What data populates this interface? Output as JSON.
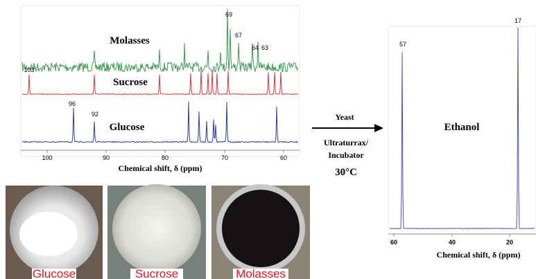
{
  "left_spectrum": {
    "traces": [
      {
        "name": "Molasses",
        "color": "#3f9a52"
      },
      {
        "name": "Sucrose",
        "color": "#d23a3a"
      },
      {
        "name": "Glucose",
        "color": "#2e3d9c"
      }
    ],
    "peak_labels": [
      "69",
      "67",
      "64",
      "63",
      "103",
      "96",
      "92"
    ],
    "xticks": [
      "100",
      "90",
      "80",
      "70",
      "60"
    ],
    "xlabel": "Chemical shift, δ (ppm)"
  },
  "arrow": {
    "above": "Yeast",
    "below": [
      "Ultraturrax/",
      "Incubator",
      "30°C"
    ]
  },
  "right_spectrum": {
    "label": "Ethanol",
    "peak_labels": [
      "57",
      "17"
    ],
    "xticks": [
      "60",
      "40",
      "20"
    ],
    "xlabel": "Chemical shift, δ (ppm)"
  },
  "photos": [
    "Glucose",
    "Sucrose",
    "Molasses"
  ]
}
